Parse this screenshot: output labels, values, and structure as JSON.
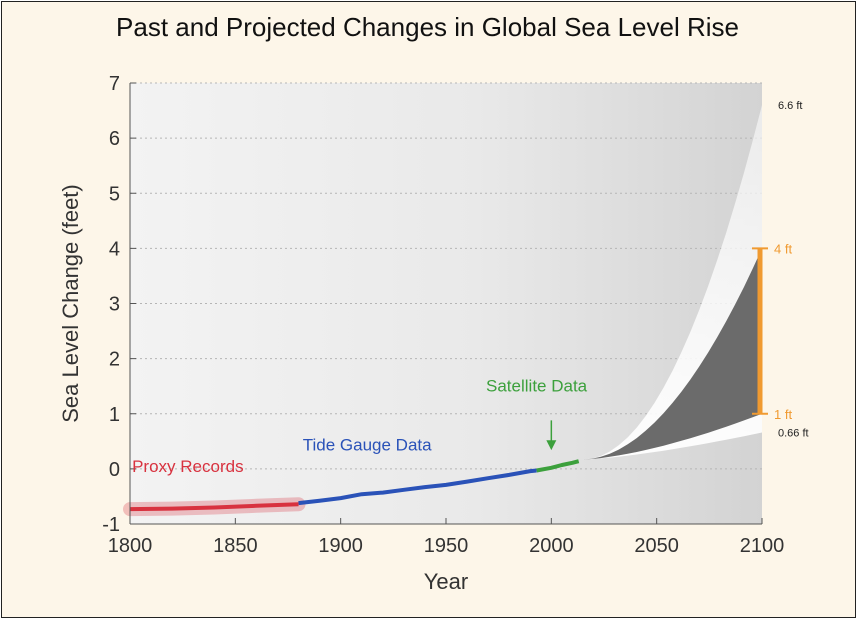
{
  "chart_data": {
    "type": "line",
    "title": "Past and Projected Changes in Global Sea Level Rise",
    "xlabel": "Year",
    "ylabel": "Sea Level Change (feet)",
    "xlim": [
      1800,
      2100
    ],
    "ylim": [
      -1,
      7
    ],
    "x_ticks": [
      "1800",
      "1850",
      "1900",
      "1950",
      "2000",
      "2050",
      "2100"
    ],
    "y_ticks": [
      "-1",
      "0",
      "1",
      "2",
      "3",
      "4",
      "5",
      "6",
      "7"
    ],
    "grid": true,
    "series": [
      {
        "name": "Proxy Records",
        "color": "#d8323f",
        "x": [
          1800,
          1820,
          1840,
          1860,
          1880
        ],
        "y": [
          -0.73,
          -0.72,
          -0.7,
          -0.67,
          -0.64
        ]
      },
      {
        "name": "Tide Gauge Data",
        "color": "#2a52b8",
        "x": [
          1880,
          1890,
          1900,
          1910,
          1920,
          1930,
          1940,
          1950,
          1960,
          1970,
          1980,
          1990,
          1993
        ],
        "y": [
          -0.62,
          -0.58,
          -0.53,
          -0.46,
          -0.43,
          -0.38,
          -0.33,
          -0.29,
          -0.23,
          -0.17,
          -0.11,
          -0.04,
          -0.03
        ]
      },
      {
        "name": "Satellite Data",
        "color": "#3ca03c",
        "x": [
          1993,
          2000,
          2005,
          2010,
          2013
        ],
        "y": [
          -0.03,
          0.02,
          0.07,
          0.11,
          0.14
        ]
      }
    ],
    "projections": {
      "start_year": 2015,
      "start_value": 0.17,
      "highest": {
        "label": "6.6 ft",
        "value": 6.6
      },
      "likely_high": {
        "label": "4 ft",
        "value": 4
      },
      "likely_low": {
        "label": "1 ft",
        "value": 1
      },
      "lowest": {
        "label": "0.66 ft",
        "value": 0.66
      }
    },
    "annotations": {
      "satellite_arrow_year": 2000
    },
    "colors": {
      "likely_range": "#f09a30",
      "likely_fill": "#6b6b6b",
      "plot_background": "#e8e8e8"
    }
  }
}
